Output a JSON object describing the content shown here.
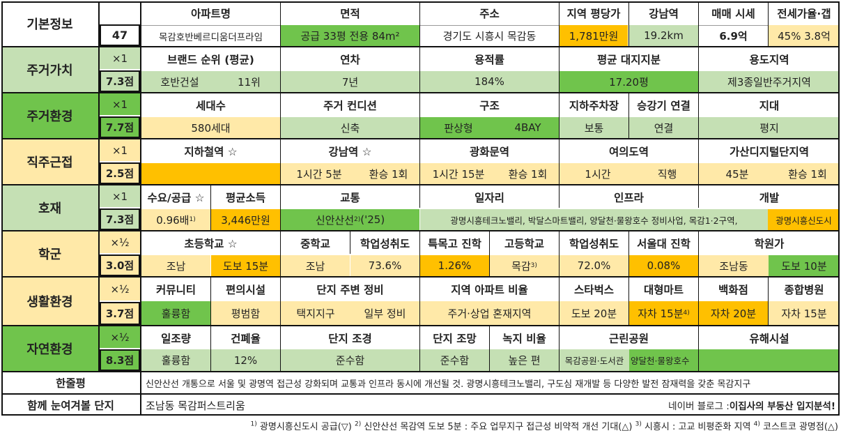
{
  "colors": {
    "section_yellow": "#ffe9a8",
    "section_lightgreen": "#c5e0b4",
    "section_green": "#70c44c",
    "value_lightgreen": "#c5e0b4",
    "value_green": "#70c44c",
    "value_yellow": "#ffe9a8",
    "value_orange": "#ffc000"
  },
  "basic": {
    "label": "기본정보",
    "number": "47",
    "headers": [
      "아파트명",
      "면적",
      "주소",
      "지역 평당가",
      "강남역",
      "매매 시세",
      "전세가율·갭"
    ],
    "apt_name": "목감호반베르디움더프라임",
    "area": "공급 33평   전용 84m²",
    "address": "경기도 시흥시 목감동",
    "price_per_pyeong": "1,781만원",
    "gangnam_distance": "19.2km",
    "sale_price": "6.9억",
    "jeonse_gap": "45%  3.8억"
  },
  "sections": [
    {
      "name": "주거가치",
      "mult": "×1",
      "score": "7.3점"
    },
    {
      "name": "주거환경",
      "mult": "×1",
      "score": "7.7점"
    },
    {
      "name": "직주근접",
      "mult": "×1",
      "score": "2.5점"
    },
    {
      "name": "호재",
      "mult": "×1",
      "score": "7.3점"
    },
    {
      "name": "학군",
      "mult": "×½",
      "score": "3.0점"
    },
    {
      "name": "생활환경",
      "mult": "×½",
      "score": "3.7점"
    },
    {
      "name": "자연환경",
      "mult": "×½",
      "score": "8.3점"
    }
  ],
  "value": {
    "headers": [
      "브랜드 순위 (평균)",
      "연차",
      "용적률",
      "평균 대지지분",
      "용도지역"
    ],
    "brand": "호반건설",
    "brand_rank": "11위",
    "age": "7년",
    "far": "184%",
    "land_share": "17.20평",
    "zoning": "제3종일반주거지역"
  },
  "environment": {
    "headers": [
      "세대수",
      "주거 컨디션",
      "구조",
      "지하주차장",
      "승강기 연결",
      "지대"
    ],
    "households": "580세대",
    "condition": "신축",
    "structure1": "판상형",
    "structure2": "4BAY",
    "parking": "보통",
    "elevator": "연결",
    "terrain": "평지"
  },
  "commute": {
    "headers": [
      "지하철역 ☆",
      "강남역 ☆",
      "광화문역",
      "여의도역",
      "가산디지털단지역"
    ],
    "gangnam_time": "1시간 5분",
    "gangnam_transfer": "환승 1회",
    "gwanghwamun_time": "1시간 15분",
    "gwanghwamun_transfer": "환승 1회",
    "yeouido_time": "1시간",
    "yeouido_transfer": "직행",
    "gasan_time": "45분",
    "gasan_transfer": "환승 1회"
  },
  "development": {
    "headers": [
      "수요/공급 ☆",
      "평균소득",
      "교통",
      "일자리",
      "인프라",
      "개발"
    ],
    "supply_ratio": "0.96배",
    "supply_note": "1)",
    "income": "3,446만원",
    "transport": "신안산선",
    "transport_note": "2)",
    "transport_year": " ('25)",
    "jobs_infra": "광명시흥테크노밸리, 박달스마트밸리, 양달천·물왕호수 정비사업, 목감1·2구역,",
    "development": "광명시흥신도시"
  },
  "school": {
    "headers": [
      "초등학교 ☆",
      "중학교",
      "학업성취도",
      "특목고 진학",
      "고등학교",
      "학업성취도",
      "서울대 진학",
      "학원가"
    ],
    "elementary": "조남",
    "elementary_walk": "도보 15분",
    "middle": "조남",
    "middle_score": "73.6%",
    "special_high": "1.26%",
    "high": "목감",
    "high_note": "3)",
    "high_score": "72.0%",
    "snu": "0.08%",
    "academy": "조남동",
    "academy_walk": "도보 10분"
  },
  "living": {
    "headers": [
      "커뮤니티",
      "편의시설",
      "단지 주변 정비",
      "지역 아파트 비율",
      "스타벅스",
      "대형마트",
      "백화점",
      "종합병원"
    ],
    "community": "훌륭함",
    "convenience": "평범함",
    "surroundings1": "택지지구",
    "surroundings2": "일부 정비",
    "apt_ratio": "주거·상업 혼재지역",
    "starbucks": "도보 20분",
    "mart": "자차 15분",
    "mart_note": "4)",
    "dept": "자차 20분",
    "hospital": "자차 15분"
  },
  "nature": {
    "headers": [
      "일조량",
      "건폐율",
      "단지 조경",
      "단지 조망",
      "녹지 비율",
      "근린공원",
      "유해시설"
    ],
    "sunlight": "훌륭함",
    "coverage": "12%",
    "landscape": "준수함",
    "view": "준수함",
    "green_ratio": "높은 편",
    "park1": "목감공원·도서관",
    "park2": "양달천·물왕호수",
    "hazard": ""
  },
  "summary": {
    "label": "한줄평",
    "text": "신안산선 개통으로 서울 및 광명역 접근성 강화되며 교통과 인프라 동시에 개선될 것. 광명시흥테크노밸리, 구도심 재개발 등 다양한 발전 잠재력을 갖춘 목감지구"
  },
  "related": {
    "label": "함께 눈여겨볼 단지",
    "text": "조남동 목감퍼스트리움",
    "blog_prefix": "네이버 블로그 : ",
    "blog_name": "이집사의 부동산 입지분석!"
  },
  "footnotes": [
    {
      "mark": "1)",
      "text": "광명시흥신도시 공급(▽)"
    },
    {
      "mark": "2)",
      "text": "신안산선 목감역 도보 5분 : 주요 업무지구 접근성 비약적 개선 기대(△)"
    },
    {
      "mark": "3)",
      "text": "시흥시 : 고교 비평준화 지역"
    },
    {
      "mark": "4)",
      "text": "코스트코 광명점(△)"
    }
  ]
}
